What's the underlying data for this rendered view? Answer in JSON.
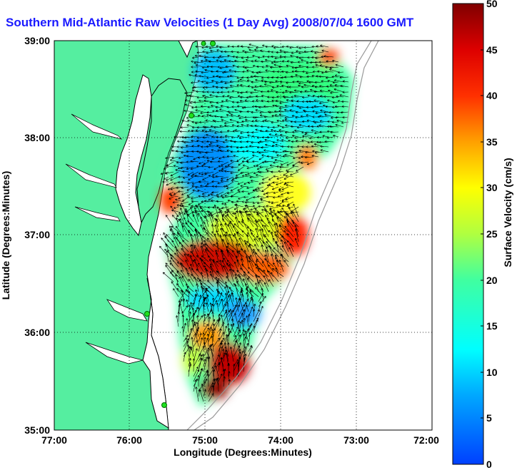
{
  "title": "Southern Mid-Atlantic Raw Velocities (1 Day Avg) 2008/07/04 1600 GMT",
  "map": {
    "xlabel": "Longitude (Degrees:Minutes)",
    "ylabel": "Latitude (Degrees:Minutes)",
    "x_ticks": [
      "77:00",
      "76:00",
      "75:00",
      "74:00",
      "73:00",
      "72:00"
    ],
    "y_ticks": [
      "39:00",
      "38:00",
      "37:00",
      "36:00",
      "35:00"
    ],
    "land_color": "#55eea0",
    "grid": "dotted"
  },
  "colorbar": {
    "label": "Surface Velocity (cm/s)",
    "ticks": [
      "50",
      "45",
      "40",
      "35",
      "30",
      "25",
      "20",
      "15",
      "10",
      "5",
      "0"
    ],
    "range": [
      0,
      50
    ],
    "colormap": "jet"
  }
}
